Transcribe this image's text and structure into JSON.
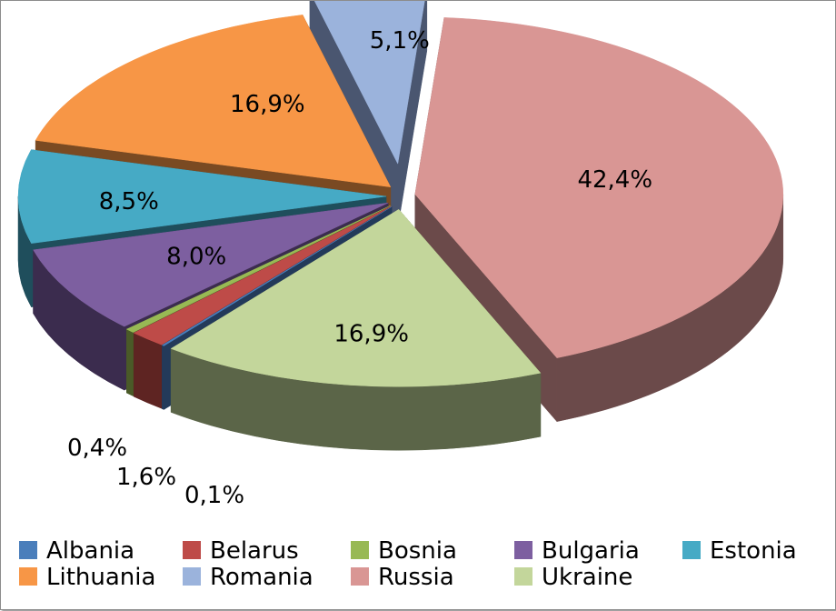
{
  "chart_data": {
    "type": "pie",
    "style": "3d-exploded",
    "title": "",
    "legend_position": "bottom",
    "slices": [
      {
        "name": "Albania",
        "value": 0.1,
        "label": "0,1%",
        "color": "#4a7ebb",
        "side_color": "#233a5a"
      },
      {
        "name": "Belarus",
        "value": 1.6,
        "label": "1,6%",
        "color": "#be4b48",
        "side_color": "#5e2422"
      },
      {
        "name": "Bosnia",
        "value": 0.4,
        "label": "0,4%",
        "color": "#98b954",
        "side_color": "#4a5a28"
      },
      {
        "name": "Bulgaria",
        "value": 8.0,
        "label": "8,0%",
        "color": "#7d5fa0",
        "side_color": "#3b2c4e"
      },
      {
        "name": "Estonia",
        "value": 8.5,
        "label": "8,5%",
        "color": "#46aac5",
        "side_color": "#1f4e5c"
      },
      {
        "name": "Lithuania",
        "value": 16.9,
        "label": "16,9%",
        "color": "#f79646",
        "side_color": "#7a4a22"
      },
      {
        "name": "Romania",
        "value": 5.1,
        "label": "5,1%",
        "color": "#9bb3dc",
        "side_color": "#4a5670"
      },
      {
        "name": "Russia",
        "value": 42.4,
        "label": "42,4%",
        "color": "#d99694",
        "side_color": "#6b4a4a"
      },
      {
        "name": "Ukraine",
        "value": 16.9,
        "label": "16,9%",
        "color": "#c3d69b",
        "side_color": "#5b6548"
      }
    ]
  }
}
